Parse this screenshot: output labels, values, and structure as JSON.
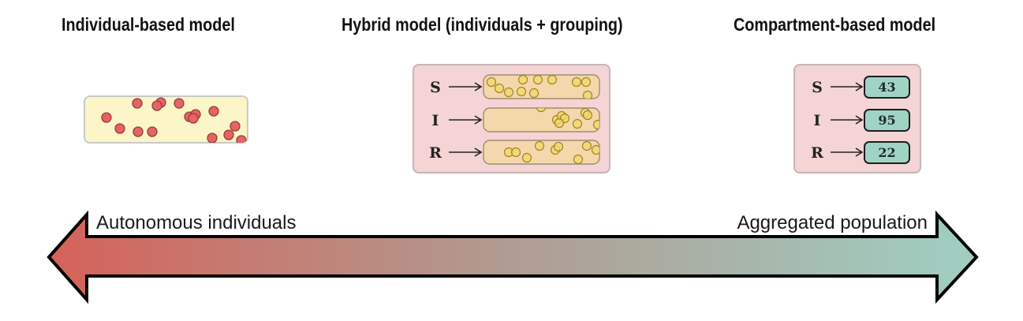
{
  "titles": {
    "individual": "Individual-based model",
    "hybrid": "Hybrid model (individuals + grouping)",
    "compartment": "Compartment-based model"
  },
  "arrow": {
    "left_label": "Autonomous individuals",
    "right_label": "Aggregated population",
    "color_left": "#d5625a",
    "color_right": "#9fcfc2"
  },
  "hybrid": {
    "compartments": [
      {
        "label": "S"
      },
      {
        "label": "I"
      },
      {
        "label": "R"
      }
    ]
  },
  "compartment_model": {
    "compartments": [
      {
        "label": "S",
        "count": "43"
      },
      {
        "label": "I",
        "count": "95"
      },
      {
        "label": "R",
        "count": "22"
      }
    ]
  },
  "colors": {
    "individual_dot": "#e46464",
    "hybrid_dot": "#f5d76a",
    "count_box": "#9fd4c4",
    "group_panel": "#f4d4d4"
  }
}
